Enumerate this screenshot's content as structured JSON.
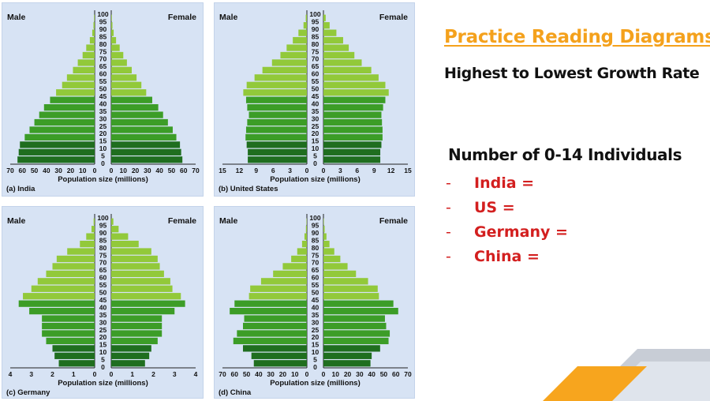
{
  "slide": {
    "title": "Practice Reading Diagrams",
    "subtitle": "Highest to Lowest Growth Rate",
    "question_heading": "Number of 0-14 Individuals",
    "items": [
      {
        "dash": "-",
        "label": "India ="
      },
      {
        "dash": "-",
        "label": "US ="
      },
      {
        "dash": "-",
        "label": "Germany ="
      },
      {
        "dash": "-",
        "label": "China ="
      }
    ]
  },
  "colors": {
    "panel_bg": "#d7e3f4",
    "bar_young": "#1f6e1f",
    "bar_mid": "#3c9d27",
    "bar_old": "#92c93a",
    "title_orange": "#f4a11c",
    "item_red": "#d31f1f",
    "deco_orange": "#f7a51e",
    "deco_gray": "#9aa4b5"
  },
  "chart_data": [
    {
      "type": "bar",
      "orientation": "horizontal-population-pyramid",
      "caption": "(a) India",
      "male_label": "Male",
      "female_label": "Female",
      "xlabel": "Population size (millions)",
      "age_ticks": [
        "100",
        "95",
        "90",
        "85",
        "80",
        "75",
        "70",
        "65",
        "60",
        "55",
        "50",
        "45",
        "40",
        "35",
        "30",
        "25",
        "20",
        "15",
        "10",
        "5",
        "0"
      ],
      "x_tick_labels_left": [
        "70",
        "60",
        "50",
        "40",
        "30",
        "20",
        "10",
        "0"
      ],
      "x_tick_labels_right": [
        "0",
        "10",
        "20",
        "30",
        "40",
        "50",
        "60",
        "70"
      ],
      "xlim": [
        0,
        70
      ],
      "categories": [
        "0-4",
        "5-9",
        "10-14",
        "15-19",
        "20-24",
        "25-29",
        "30-34",
        "35-39",
        "40-44",
        "45-49",
        "50-54",
        "55-59",
        "60-64",
        "65-69",
        "70-74",
        "75-79",
        "80-84",
        "85-89",
        "90-94",
        "95-99"
      ],
      "series": [
        {
          "name": "Male",
          "values": [
            64,
            63,
            62,
            58,
            54,
            50,
            46,
            42,
            37,
            32,
            27,
            23,
            18,
            14,
            10,
            7,
            4,
            2,
            1,
            0.5
          ]
        },
        {
          "name": "Female",
          "values": [
            59,
            58,
            57,
            54,
            51,
            47,
            43,
            39,
            34,
            29,
            25,
            21,
            17,
            13,
            10,
            7,
            4,
            2,
            1,
            0.5
          ]
        }
      ]
    },
    {
      "type": "bar",
      "orientation": "horizontal-population-pyramid",
      "caption": "(b) United States",
      "male_label": "Male",
      "female_label": "Female",
      "xlabel": "Population size (millions)",
      "age_ticks": [
        "100",
        "95",
        "90",
        "85",
        "80",
        "75",
        "70",
        "65",
        "60",
        "55",
        "50",
        "45",
        "40",
        "35",
        "30",
        "25",
        "20",
        "15",
        "10",
        "5",
        "0"
      ],
      "x_tick_labels_left": [
        "15",
        "12",
        "9",
        "6",
        "3",
        "0"
      ],
      "x_tick_labels_right": [
        "0",
        "3",
        "6",
        "9",
        "12",
        "15"
      ],
      "xlim": [
        0,
        15
      ],
      "categories": [
        "0-4",
        "5-9",
        "10-14",
        "15-19",
        "20-24",
        "25-29",
        "30-34",
        "35-39",
        "40-44",
        "45-49",
        "50-54",
        "55-59",
        "60-64",
        "65-69",
        "70-74",
        "75-79",
        "80-84",
        "85-89",
        "90-94",
        "95-99"
      ],
      "series": [
        {
          "name": "Male",
          "values": [
            10.5,
            10.5,
            10.7,
            10.9,
            10.8,
            10.6,
            10.3,
            10.6,
            10.8,
            11.3,
            10.7,
            9.3,
            7.9,
            6.2,
            4.7,
            3.6,
            2.5,
            1.5,
            0.6,
            0.2
          ]
        },
        {
          "name": "Female",
          "values": [
            10.1,
            10.1,
            10.3,
            10.5,
            10.5,
            10.4,
            10.3,
            10.6,
            11.0,
            11.6,
            11.0,
            9.8,
            8.5,
            6.8,
            5.5,
            4.5,
            3.5,
            2.3,
            1.1,
            0.4
          ]
        }
      ]
    },
    {
      "type": "bar",
      "orientation": "horizontal-population-pyramid",
      "caption": "(c) Germany",
      "male_label": "Male",
      "female_label": "Female",
      "xlabel": "Population size (millions)",
      "age_ticks": [
        "100",
        "95",
        "90",
        "85",
        "80",
        "75",
        "70",
        "65",
        "60",
        "55",
        "50",
        "45",
        "40",
        "35",
        "30",
        "25",
        "20",
        "15",
        "10",
        "5",
        "0"
      ],
      "x_tick_labels_left": [
        "4",
        "3",
        "2",
        "1",
        "0"
      ],
      "x_tick_labels_right": [
        "0",
        "1",
        "2",
        "3",
        "4"
      ],
      "xlim": [
        0,
        4
      ],
      "categories": [
        "0-4",
        "5-9",
        "10-14",
        "15-19",
        "20-24",
        "25-29",
        "30-34",
        "35-39",
        "40-44",
        "45-49",
        "50-54",
        "55-59",
        "60-64",
        "65-69",
        "70-74",
        "75-79",
        "80-84",
        "85-89",
        "90-94",
        "95-99"
      ],
      "series": [
        {
          "name": "Male",
          "values": [
            1.7,
            1.9,
            2.0,
            2.3,
            2.5,
            2.5,
            2.5,
            3.1,
            3.6,
            3.4,
            3.0,
            2.7,
            2.3,
            2.0,
            1.8,
            1.3,
            0.7,
            0.4,
            0.15,
            0.05
          ]
        },
        {
          "name": "Female",
          "values": [
            1.6,
            1.8,
            1.9,
            2.2,
            2.4,
            2.4,
            2.4,
            3.0,
            3.5,
            3.3,
            2.9,
            2.8,
            2.5,
            2.3,
            2.2,
            1.9,
            1.3,
            0.8,
            0.35,
            0.1
          ]
        }
      ]
    },
    {
      "type": "bar",
      "orientation": "horizontal-population-pyramid",
      "caption": "(d) China",
      "male_label": "Male",
      "female_label": "Female",
      "xlabel": "Population size (millions)",
      "age_ticks": [
        "100",
        "95",
        "90",
        "85",
        "80",
        "75",
        "70",
        "65",
        "60",
        "55",
        "50",
        "45",
        "40",
        "35",
        "30",
        "25",
        "20",
        "15",
        "10",
        "5",
        "0"
      ],
      "x_tick_labels_left": [
        "70",
        "60",
        "50",
        "40",
        "30",
        "20",
        "10",
        "0"
      ],
      "x_tick_labels_right": [
        "0",
        "10",
        "20",
        "30",
        "40",
        "50",
        "60",
        "70"
      ],
      "xlim": [
        0,
        70
      ],
      "categories": [
        "0-4",
        "5-9",
        "10-14",
        "15-19",
        "20-24",
        "25-29",
        "30-34",
        "35-39",
        "40-44",
        "45-49",
        "50-54",
        "55-59",
        "60-64",
        "65-69",
        "70-74",
        "75-79",
        "80-84",
        "85-89",
        "90-94",
        "95-99"
      ],
      "series": [
        {
          "name": "Male",
          "values": [
            44,
            46,
            53,
            61,
            58,
            53,
            52,
            64,
            60,
            48,
            47,
            38,
            28,
            20,
            13,
            8,
            4,
            2,
            0.8,
            0.3
          ]
        },
        {
          "name": "Female",
          "values": [
            39,
            40,
            47,
            54,
            55,
            52,
            51,
            62,
            58,
            46,
            45,
            37,
            27,
            20,
            14,
            9,
            5,
            2.5,
            1,
            0.4
          ]
        }
      ]
    }
  ]
}
